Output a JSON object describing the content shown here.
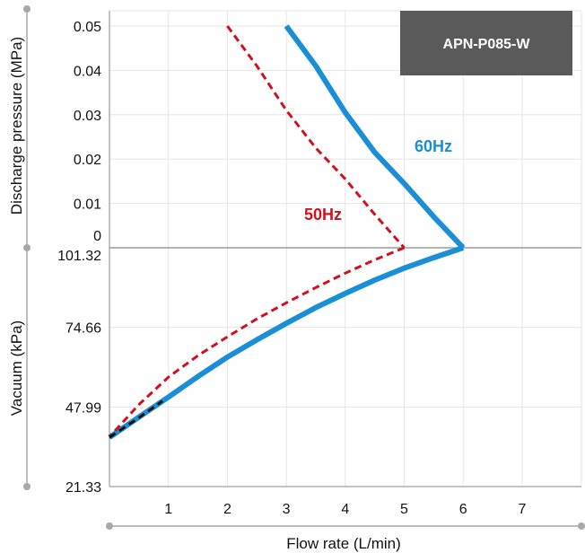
{
  "chart_data": {
    "type": "line",
    "model_label": "APN-P085-W",
    "xlabel": "Flow rate (L/min)",
    "ylabel_top": "Discharge pressure (MPa)",
    "ylabel_bottom": "Vacuum (kPa)",
    "x_ticks": [
      "1",
      "2",
      "3",
      "4",
      "5",
      "6",
      "7"
    ],
    "pressure_ticks": [
      "0.05",
      "0.04",
      "0.03",
      "0.02",
      "0.01",
      "0"
    ],
    "vacuum_ticks": [
      "101.32",
      "74.66",
      "47.99",
      "21.33"
    ],
    "x_range": [
      0,
      8
    ],
    "pressure_range": [
      0,
      0.05
    ],
    "vacuum_range": [
      101.32,
      21.33
    ],
    "colors": {
      "hz60": "#1a8fd6",
      "hz50": "#d0101e",
      "axis": "#999999",
      "model_box": "#5a5a5a"
    },
    "series": [
      {
        "name": "60Hz",
        "pressure": {
          "x": [
            3.0,
            3.5,
            4.0,
            4.5,
            5.0,
            5.5,
            6.0
          ],
          "y": [
            0.05,
            0.041,
            0.0305,
            0.0215,
            0.0145,
            0.007,
            0.0
          ]
        },
        "vacuum": {
          "x": [
            6.0,
            5.5,
            5.0,
            4.5,
            4.0,
            3.5,
            3.0,
            2.5,
            2.0,
            1.5,
            1.0,
            0.5,
            0.0
          ],
          "y": [
            101.32,
            98.0,
            94.5,
            90.5,
            86.0,
            81.3,
            76.0,
            70.5,
            64.7,
            58.2,
            51.3,
            44.6,
            37.8
          ]
        }
      },
      {
        "name": "50Hz",
        "pressure": {
          "x": [
            2.0,
            2.5,
            3.0,
            3.5,
            4.0,
            4.5,
            5.0
          ],
          "y": [
            0.05,
            0.041,
            0.031,
            0.0225,
            0.0155,
            0.0075,
            0.0
          ]
        },
        "vacuum": {
          "x": [
            5.0,
            4.5,
            4.0,
            3.5,
            3.0,
            2.5,
            2.0,
            1.5,
            1.0,
            0.5,
            0.0
          ],
          "y": [
            101.32,
            97.3,
            92.8,
            88.0,
            82.9,
            77.5,
            71.5,
            65.2,
            58.0,
            48.8,
            38.0
          ]
        }
      }
    ]
  }
}
